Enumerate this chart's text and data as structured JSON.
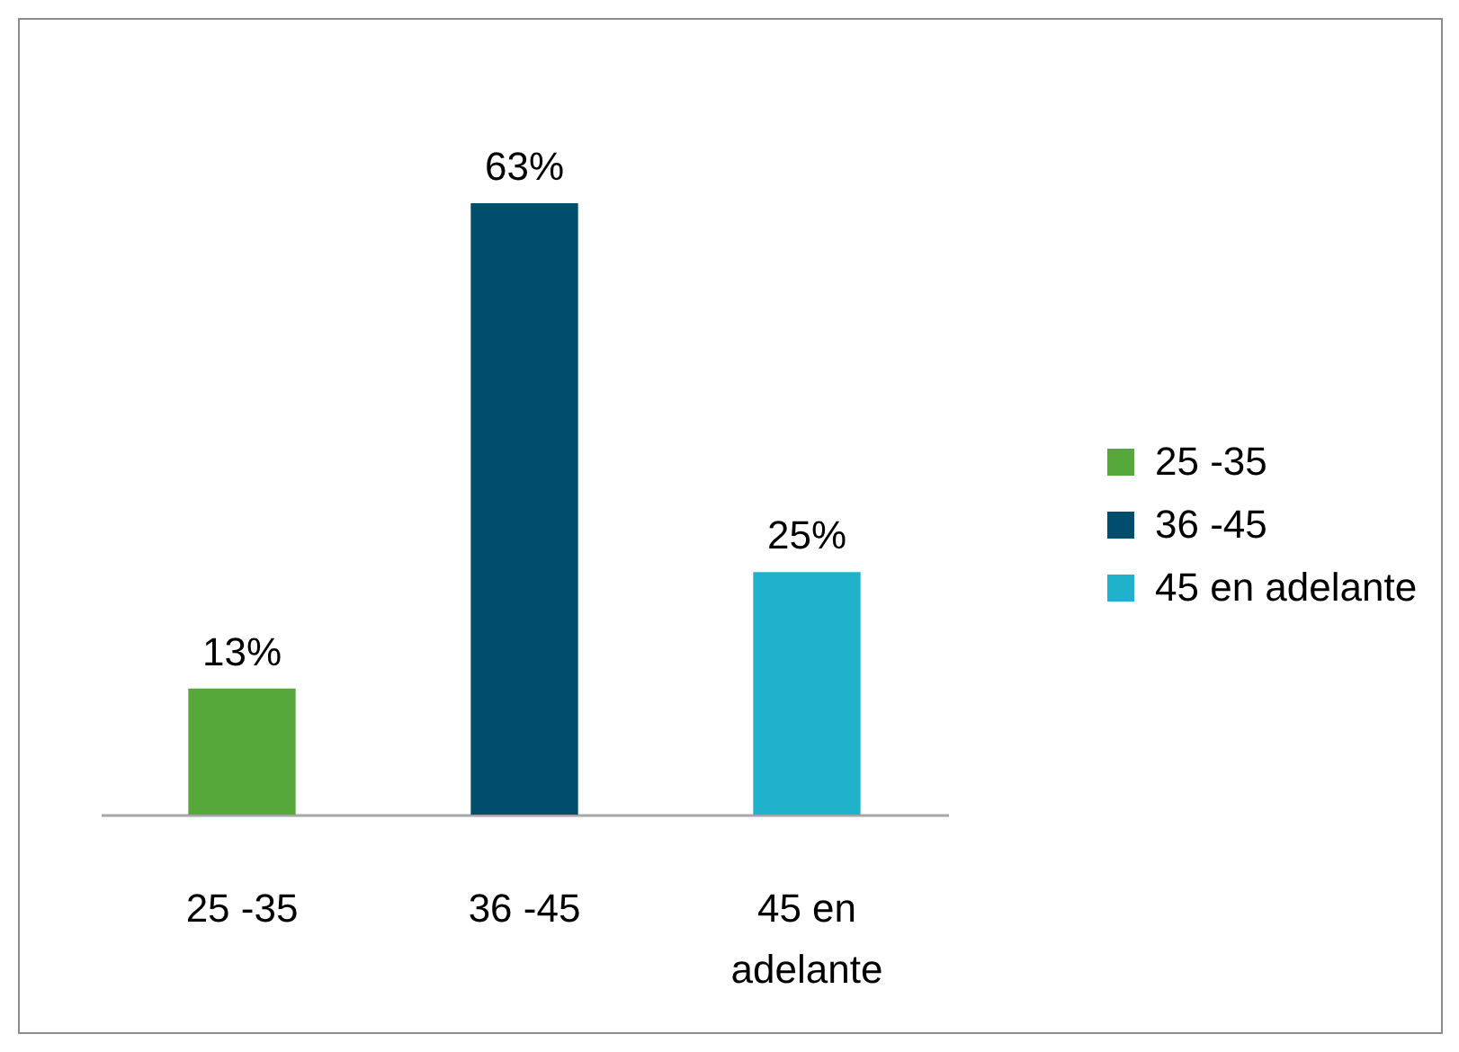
{
  "chart_data": {
    "type": "bar",
    "categories": [
      "25 -35",
      "36 -45",
      "45 en adelante"
    ],
    "stacked": true,
    "series": [
      {
        "name": "25 -35",
        "color": "#57a83b",
        "values": [
          13,
          null,
          null
        ],
        "value_labels": [
          "13%",
          null,
          null
        ]
      },
      {
        "name": "36 -45",
        "color": "#014d6e",
        "values": [
          null,
          63,
          null
        ],
        "value_labels": [
          null,
          "63%",
          null
        ]
      },
      {
        "name": "45 en adelante",
        "color": "#21b2cb",
        "values": [
          null,
          null,
          25
        ],
        "value_labels": [
          null,
          null,
          "25%"
        ]
      }
    ],
    "legend": "right"
  }
}
